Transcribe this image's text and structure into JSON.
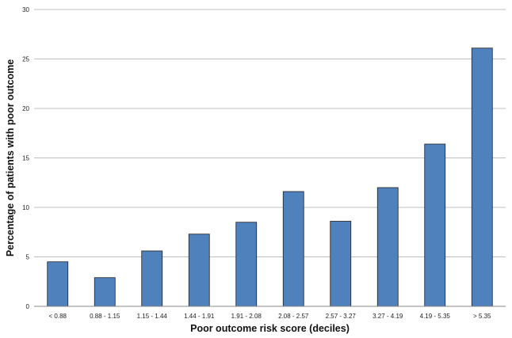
{
  "chart_data": {
    "type": "bar",
    "title": "",
    "xlabel": "Poor outcome risk score (deciles)",
    "ylabel": "Percentage of patients with poor outcome",
    "categories": [
      "< 0.88",
      "0.88 - 1.15",
      "1.15 - 1.44",
      "1.44 - 1.91",
      "1.91 - 2.08",
      "2.08 - 2.57",
      "2.57 - 3.27",
      "3.27 - 4.19",
      "4.19 - 5.35",
      "> 5.35"
    ],
    "values": [
      4.5,
      2.9,
      5.6,
      7.3,
      8.5,
      11.6,
      8.6,
      12.0,
      16.4,
      26.1
    ],
    "ylim": [
      0,
      30
    ],
    "yticks": [
      0,
      5,
      10,
      15,
      20,
      25,
      30
    ],
    "grid": true,
    "bar_color": "#4f81bd",
    "bar_edge_color": "#1f1f1f",
    "grid_color": "#c0c0c0"
  }
}
